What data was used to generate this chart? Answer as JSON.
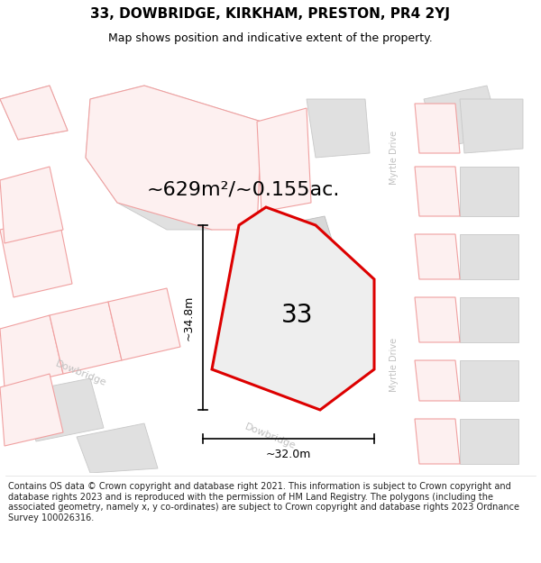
{
  "title": "33, DOWBRIDGE, KIRKHAM, PRESTON, PR4 2YJ",
  "subtitle": "Map shows position and indicative extent of the property.",
  "footer": "Contains OS data © Crown copyright and database right 2021. This information is subject to Crown copyright and database rights 2023 and is reproduced with the permission of HM Land Registry. The polygons (including the associated geometry, namely x, y co-ordinates) are subject to Crown copyright and database rights 2023 Ordnance Survey 100026316.",
  "area_label": "~629m²/~0.155ac.",
  "number_label": "33",
  "dim_vertical": "~34.8m",
  "dim_horizontal": "~32.0m",
  "map_bg": "#f5f5f5",
  "road_fill": "#ffffff",
  "building_fill": "#e0e0e0",
  "building_edge": "#c8c8c8",
  "pink_edge": "#f0a0a0",
  "pink_fill": "#fdf0f0",
  "red_line_color": "#dd0000",
  "property_fill": "#eeeeee",
  "road_label_color": "#c0c0c0",
  "title_fontsize": 11,
  "subtitle_fontsize": 9,
  "footer_fontsize": 7,
  "area_fontsize": 16,
  "number_fontsize": 20,
  "dim_fontsize": 9,
  "road_fontsize": 8
}
